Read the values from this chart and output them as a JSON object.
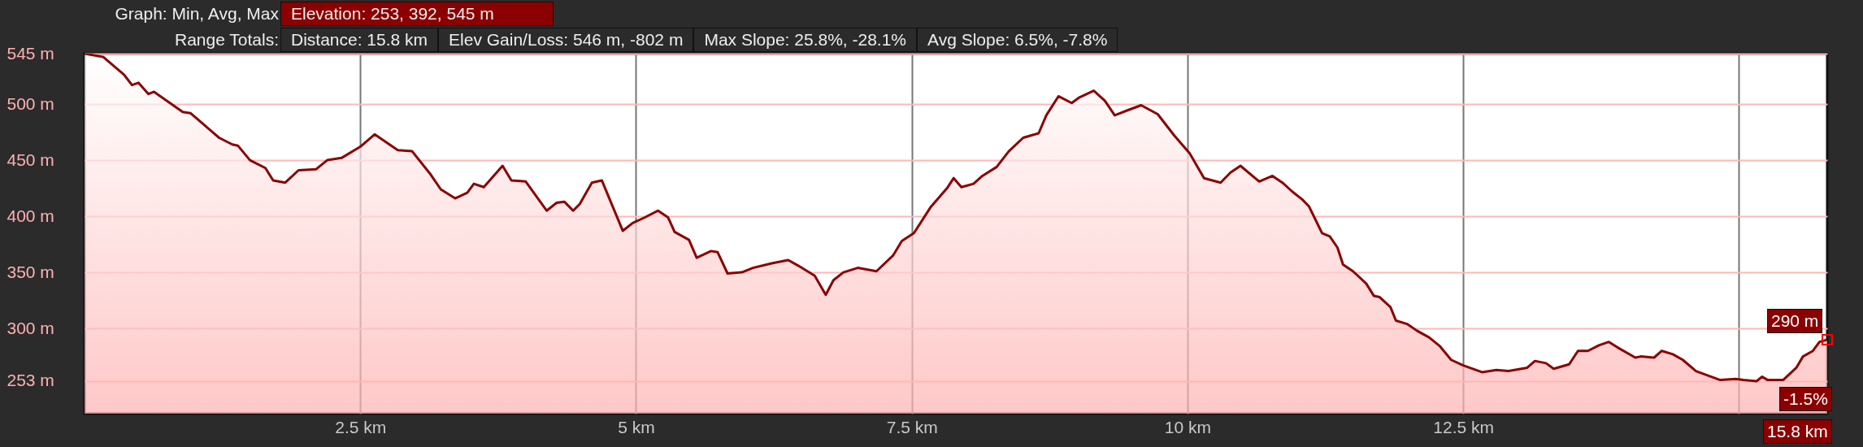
{
  "chart_data": {
    "type": "area",
    "annotations": [
      "Graph: Min, Avg, Max",
      "Elevation: 253, 392, 545 m",
      "Range Totals:",
      "Distance: 15.8 km",
      "Elev Gain/Loss: 546 m, -802 m",
      "Max Slope: 25.8%, -28.1%",
      "Avg Slope: 6.5%, -7.8%",
      "290 m",
      "-1.5%",
      "15.8 km"
    ],
    "x": [
      0.0,
      0.17,
      0.36,
      0.43,
      0.49,
      0.58,
      0.63,
      0.89,
      0.96,
      1.22,
      1.34,
      1.39,
      1.5,
      1.64,
      1.71,
      1.82,
      1.94,
      2.1,
      2.2,
      2.33,
      2.5,
      2.63,
      2.84,
      2.97,
      3.14,
      3.23,
      3.36,
      3.47,
      3.53,
      3.62,
      3.79,
      3.87,
      4.0,
      4.19,
      4.28,
      4.35,
      4.43,
      4.49,
      4.6,
      4.69,
      4.88,
      4.97,
      5.08,
      5.2,
      5.29,
      5.35,
      5.48,
      5.55,
      5.68,
      5.74,
      5.83,
      5.96,
      6.06,
      6.23,
      6.38,
      6.47,
      6.62,
      6.72,
      6.79,
      6.88,
      7.01,
      7.18,
      7.33,
      7.41,
      7.52,
      7.67,
      7.82,
      7.88,
      7.95,
      8.06,
      8.14,
      8.27,
      8.38,
      8.51,
      8.65,
      8.72,
      8.83,
      8.95,
      9.02,
      9.15,
      9.25,
      9.34,
      9.47,
      9.58,
      9.73,
      9.88,
      10.02,
      10.15,
      10.3,
      10.39,
      10.48,
      10.65,
      10.77,
      10.86,
      10.95,
      11.04,
      11.1,
      11.17,
      11.22,
      11.29,
      11.36,
      11.41,
      11.5,
      11.62,
      11.69,
      11.74,
      11.84,
      11.89,
      11.99,
      12.08,
      12.19,
      12.29,
      12.39,
      12.5,
      12.67,
      12.8,
      12.91,
      13.08,
      13.15,
      13.25,
      13.32,
      13.46,
      13.54,
      13.63,
      13.73,
      13.82,
      13.9,
      14.06,
      14.11,
      14.23,
      14.3,
      14.4,
      14.49,
      14.61,
      14.83,
      14.97,
      15.04,
      15.16,
      15.21,
      15.26,
      15.4,
      15.52,
      15.58,
      15.67,
      15.73,
      15.8
    ],
    "series": [
      {
        "color": "#8b0000",
        "values": [
          545,
          542,
          526,
          517,
          519,
          509,
          511,
          493,
          492,
          470,
          464,
          463,
          450,
          443,
          432,
          430,
          441,
          442,
          450,
          452,
          462,
          473,
          459,
          458,
          437,
          424,
          416,
          421,
          429,
          426,
          445,
          432,
          431,
          405,
          412,
          413,
          405,
          411,
          430,
          432,
          387,
          394,
          399,
          405,
          399,
          386,
          379,
          363,
          369,
          368,
          349,
          350,
          354,
          358,
          361,
          356,
          347,
          330,
          343,
          350,
          354,
          351,
          365,
          378,
          385,
          408,
          425,
          434,
          426,
          429,
          436,
          444,
          458,
          470,
          474,
          490,
          507,
          501,
          506,
          512,
          503,
          490,
          495,
          499,
          491,
          472,
          456,
          434,
          430,
          439,
          445,
          431,
          436,
          430,
          422,
          415,
          409,
          395,
          385,
          382,
          372,
          357,
          351,
          340,
          329,
          328,
          319,
          307,
          304,
          298,
          292,
          284,
          272,
          267,
          261,
          263,
          262,
          265,
          271,
          269,
          264,
          268,
          280,
          280,
          285,
          288,
          283,
          274,
          275,
          274,
          280,
          277,
          272,
          262,
          254,
          255,
          254,
          253,
          257,
          254,
          254,
          265,
          275,
          280,
          288,
          290
        ]
      }
    ],
    "xlim": [
      0,
      15.8
    ],
    "ylim": [
      224,
      545
    ],
    "xticks": [
      {
        "value": 2.5,
        "label": "2.5 km"
      },
      {
        "value": 5,
        "label": "5 km"
      },
      {
        "value": 7.5,
        "label": "7.5 km"
      },
      {
        "value": 10,
        "label": "10 km"
      },
      {
        "value": 12.5,
        "label": "12.5 km"
      },
      {
        "value": 15,
        "label": null
      }
    ],
    "yticks": [
      {
        "value": 253,
        "label": "253 m"
      },
      {
        "value": 300,
        "label": "300 m"
      },
      {
        "value": 350,
        "label": "350 m"
      },
      {
        "value": 400,
        "label": "400 m"
      },
      {
        "value": 450,
        "label": "450 m"
      },
      {
        "value": 500,
        "label": "500 m"
      },
      {
        "value": 545,
        "label": "545 m"
      }
    ],
    "grid": true
  }
}
